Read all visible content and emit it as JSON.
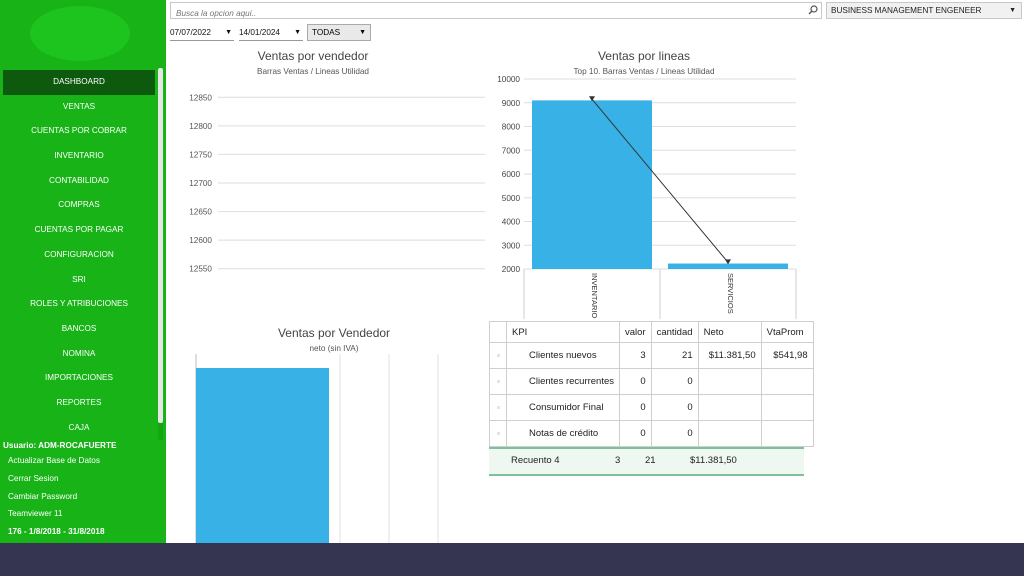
{
  "sidebar": {
    "nav": [
      "DASHBOARD",
      "VENTAS",
      "CUENTAS POR COBRAR",
      "INVENTARIO",
      "CONTABILIDAD",
      "COMPRAS",
      "CUENTAS POR PAGAR",
      "CONFIGURACION",
      "SRI",
      "ROLES Y ATRIBUCIONES",
      "BANCOS",
      "NOMINA",
      "IMPORTACIONES",
      "REPORTES",
      "CAJA"
    ],
    "active_index": 0,
    "user": "Usuario: ADM-ROCAFUERTE",
    "links": [
      "Actualizar Base de Datos",
      "Cerrar Sesion",
      "Cambiar Password",
      "Teamviewer 11"
    ],
    "period": "176 - 1/8/2018 - 31/8/2018"
  },
  "topbar": {
    "search_placeholder": "Busca la opcion aqui..",
    "company": "BUSINESS MANAGEMENT ENGENEER"
  },
  "filters": {
    "date_from": "07/07/2022",
    "date_to": "14/01/2024",
    "scope": "TODAS"
  },
  "chart_data": [
    {
      "type": "bar",
      "title": "Ventas por vendedor",
      "subtitle": "Barras Ventas / Lineas Utilidad",
      "categories": [],
      "series": [],
      "yticks": [
        12550,
        12600,
        12650,
        12700,
        12750,
        12800,
        12850
      ],
      "ylim": [
        12525,
        12875
      ]
    },
    {
      "type": "bar",
      "title": "Ventas por lineas",
      "subtitle": "Top 10. Barras Ventas / Lineas Utilidad",
      "categories": [
        "INVENTARIO",
        "SERVICIOS"
      ],
      "values": [
        9100,
        2230
      ],
      "line_values": [
        9150,
        2280
      ],
      "yticks": [
        2000,
        3000,
        4000,
        5000,
        6000,
        7000,
        8000,
        9000,
        10000
      ],
      "ylim": [
        2000,
        10000
      ],
      "bar_color": "#38b2e6"
    },
    {
      "type": "bar",
      "title": "Ventas por Vendedor",
      "subtitle": "neto (sin IVA)",
      "categories": [
        ""
      ],
      "values": [
        11381.5
      ]
    }
  ],
  "kpi_table": {
    "headers": [
      "KPI",
      "valor",
      "cantidad",
      "Neto",
      "VtaProm"
    ],
    "rows": [
      [
        "Clientes nuevos",
        "3",
        "21",
        "$11.381,50",
        "$541,98"
      ],
      [
        "Clientes recurrentes",
        "0",
        "0",
        "",
        ""
      ],
      [
        "Consumidor Final",
        "0",
        "0",
        "",
        ""
      ],
      [
        "Notas de crédito",
        "0",
        "0",
        "",
        ""
      ]
    ],
    "footer": {
      "label": "Recuento 4",
      "valor": "3",
      "cantidad": "21",
      "neto": "$11.381,50"
    }
  }
}
